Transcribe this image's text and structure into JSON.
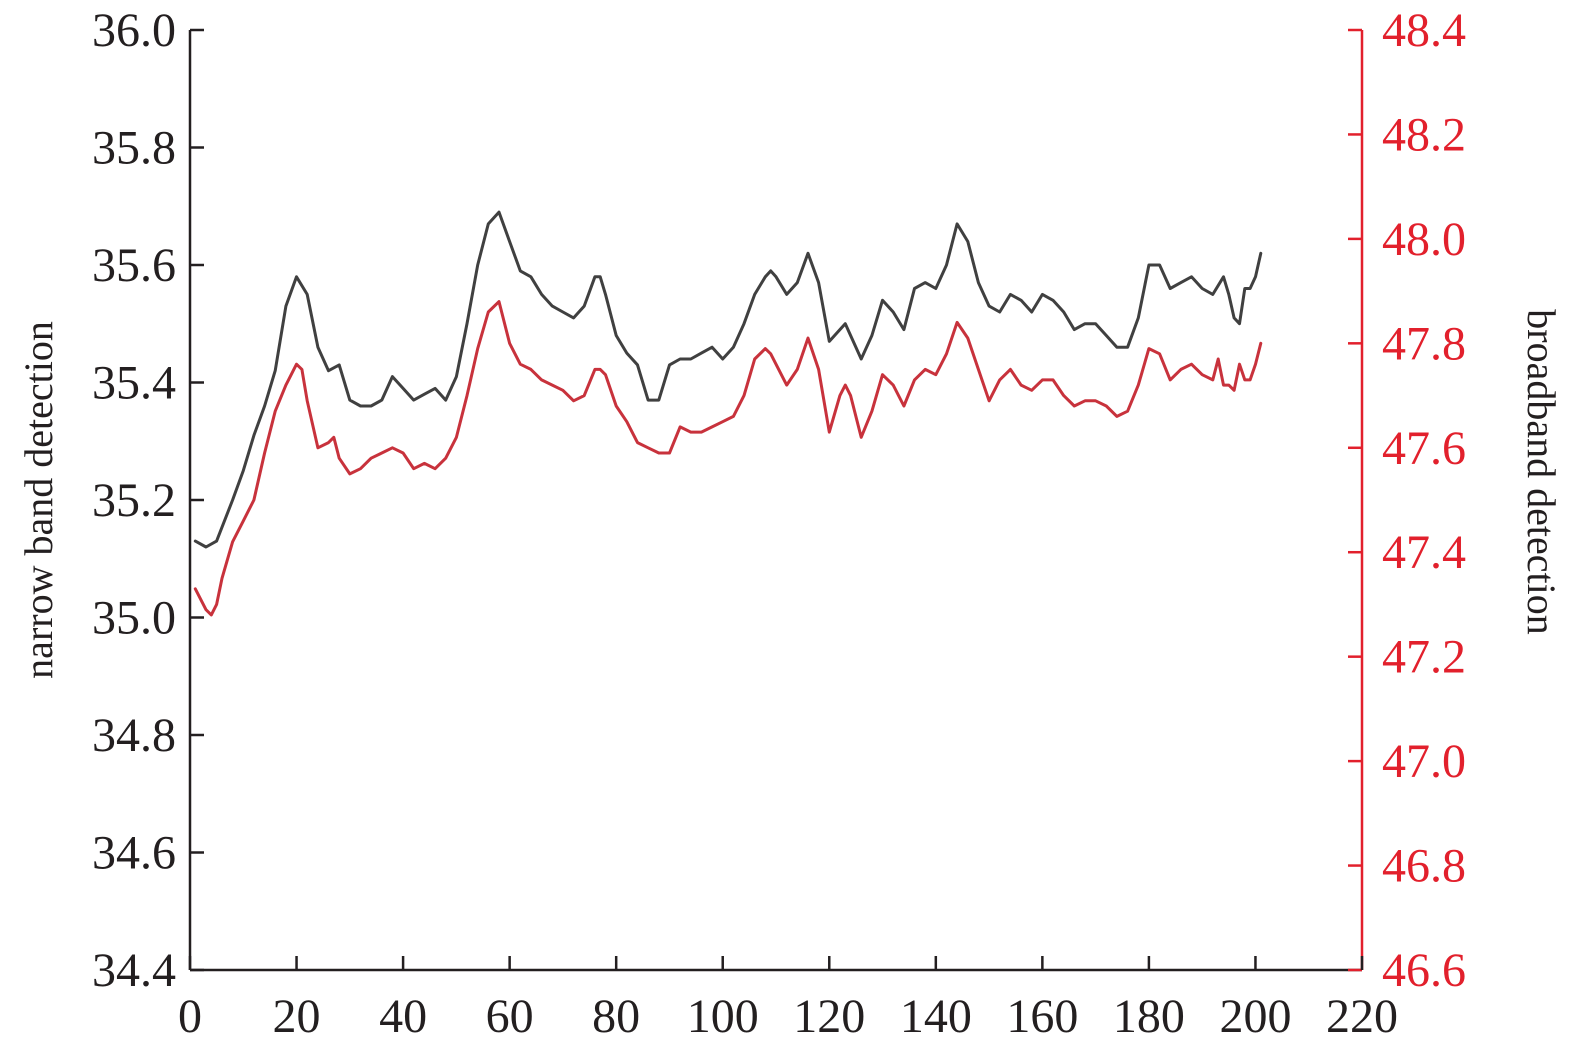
{
  "chart_data": {
    "type": "line",
    "xlabel": "",
    "ylabel_left": "narrow band detection",
    "ylabel_right": "broadband detection",
    "xlim": [
      0,
      220
    ],
    "ylim_left": [
      34.4,
      36.0
    ],
    "ylim_right": [
      46.6,
      48.4
    ],
    "xticks": [
      "0",
      "20",
      "40",
      "60",
      "80",
      "100",
      "120",
      "140",
      "160",
      "180",
      "200",
      "220"
    ],
    "yticks_left": [
      "34.4",
      "34.6",
      "34.8",
      "35.0",
      "35.2",
      "35.4",
      "35.6",
      "35.8",
      "36.0"
    ],
    "yticks_right": [
      "46.6",
      "46.8",
      "47.0",
      "47.2",
      "47.4",
      "47.6",
      "47.8",
      "48.0",
      "48.2",
      "48.4"
    ],
    "grid": false,
    "colors": {
      "left_axis": "#231f20",
      "right_axis": "#e2202c",
      "narrow_line": "#404040",
      "broad_line": "#c8323c"
    },
    "series": [
      {
        "axis": "left",
        "color": "#404040",
        "x": [
          1,
          3,
          5,
          8,
          10,
          12,
          14,
          16,
          18,
          20,
          22,
          24,
          26,
          28,
          30,
          32,
          34,
          36,
          38,
          40,
          42,
          44,
          46,
          48,
          50,
          52,
          54,
          56,
          58,
          60,
          62,
          64,
          66,
          68,
          70,
          72,
          74,
          76,
          77,
          78,
          80,
          82,
          84,
          86,
          88,
          90,
          92,
          94,
          96,
          98,
          100,
          102,
          104,
          106,
          108,
          109,
          110,
          112,
          114,
          116,
          118,
          120,
          122,
          123,
          124,
          126,
          128,
          130,
          132,
          134,
          136,
          138,
          140,
          142,
          144,
          146,
          148,
          150,
          152,
          154,
          156,
          158,
          160,
          162,
          164,
          166,
          168,
          170,
          172,
          174,
          176,
          178,
          180,
          182,
          184,
          186,
          188,
          190,
          192,
          194,
          195,
          196,
          197,
          198,
          199,
          200,
          201
        ],
        "y": [
          35.13,
          35.12,
          35.13,
          35.2,
          35.25,
          35.31,
          35.36,
          35.42,
          35.53,
          35.58,
          35.55,
          35.46,
          35.42,
          35.43,
          35.37,
          35.36,
          35.36,
          35.37,
          35.41,
          35.39,
          35.37,
          35.38,
          35.39,
          35.37,
          35.41,
          35.5,
          35.6,
          35.67,
          35.69,
          35.64,
          35.59,
          35.58,
          35.55,
          35.53,
          35.52,
          35.51,
          35.53,
          35.58,
          35.58,
          35.55,
          35.48,
          35.45,
          35.43,
          35.37,
          35.37,
          35.43,
          35.44,
          35.44,
          35.45,
          35.46,
          35.44,
          35.46,
          35.5,
          35.55,
          35.58,
          35.59,
          35.58,
          35.55,
          35.57,
          35.62,
          35.57,
          35.47,
          35.49,
          35.5,
          35.48,
          35.44,
          35.48,
          35.54,
          35.52,
          35.49,
          35.56,
          35.57,
          35.56,
          35.6,
          35.67,
          35.64,
          35.57,
          35.53,
          35.52,
          35.55,
          35.54,
          35.52,
          35.55,
          35.54,
          35.52,
          35.49,
          35.5,
          35.5,
          35.48,
          35.46,
          35.46,
          35.51,
          35.6,
          35.6,
          35.56,
          35.57,
          35.58,
          35.56,
          35.55,
          35.58,
          35.55,
          35.51,
          35.5,
          35.56,
          35.56,
          35.58,
          35.62
        ]
      },
      {
        "axis": "right",
        "color": "#c8323c",
        "x": [
          1,
          3,
          4,
          5,
          6,
          8,
          10,
          12,
          14,
          16,
          18,
          20,
          21,
          22,
          24,
          26,
          27,
          28,
          30,
          32,
          34,
          36,
          38,
          40,
          42,
          44,
          46,
          48,
          50,
          52,
          54,
          56,
          58,
          60,
          62,
          64,
          66,
          68,
          70,
          72,
          74,
          76,
          77,
          78,
          80,
          82,
          84,
          86,
          88,
          90,
          92,
          94,
          96,
          98,
          100,
          102,
          104,
          106,
          108,
          109,
          110,
          112,
          114,
          116,
          118,
          120,
          122,
          123,
          124,
          126,
          128,
          130,
          132,
          134,
          136,
          138,
          140,
          142,
          144,
          146,
          148,
          150,
          152,
          154,
          156,
          158,
          160,
          162,
          164,
          166,
          168,
          170,
          172,
          174,
          176,
          178,
          180,
          182,
          184,
          186,
          188,
          190,
          192,
          193,
          194,
          195,
          196,
          197,
          198,
          199,
          200,
          201
        ],
        "y": [
          47.33,
          47.29,
          47.28,
          47.3,
          47.35,
          47.42,
          47.46,
          47.5,
          47.59,
          47.67,
          47.72,
          47.76,
          47.75,
          47.69,
          47.6,
          47.61,
          47.62,
          47.58,
          47.55,
          47.56,
          47.58,
          47.59,
          47.6,
          47.59,
          47.56,
          47.57,
          47.56,
          47.58,
          47.62,
          47.7,
          47.79,
          47.86,
          47.88,
          47.8,
          47.76,
          47.75,
          47.73,
          47.72,
          47.71,
          47.69,
          47.7,
          47.75,
          47.75,
          47.74,
          47.68,
          47.65,
          47.61,
          47.6,
          47.59,
          47.59,
          47.64,
          47.63,
          47.63,
          47.64,
          47.65,
          47.66,
          47.7,
          47.77,
          47.79,
          47.78,
          47.76,
          47.72,
          47.75,
          47.81,
          47.75,
          47.63,
          47.7,
          47.72,
          47.7,
          47.62,
          47.67,
          47.74,
          47.72,
          47.68,
          47.73,
          47.75,
          47.74,
          47.78,
          47.84,
          47.81,
          47.75,
          47.69,
          47.73,
          47.75,
          47.72,
          47.71,
          47.73,
          47.73,
          47.7,
          47.68,
          47.69,
          47.69,
          47.68,
          47.66,
          47.67,
          47.72,
          47.79,
          47.78,
          47.73,
          47.75,
          47.76,
          47.74,
          47.73,
          47.77,
          47.72,
          47.72,
          47.71,
          47.76,
          47.73,
          47.73,
          47.76,
          47.8
        ]
      }
    ]
  }
}
